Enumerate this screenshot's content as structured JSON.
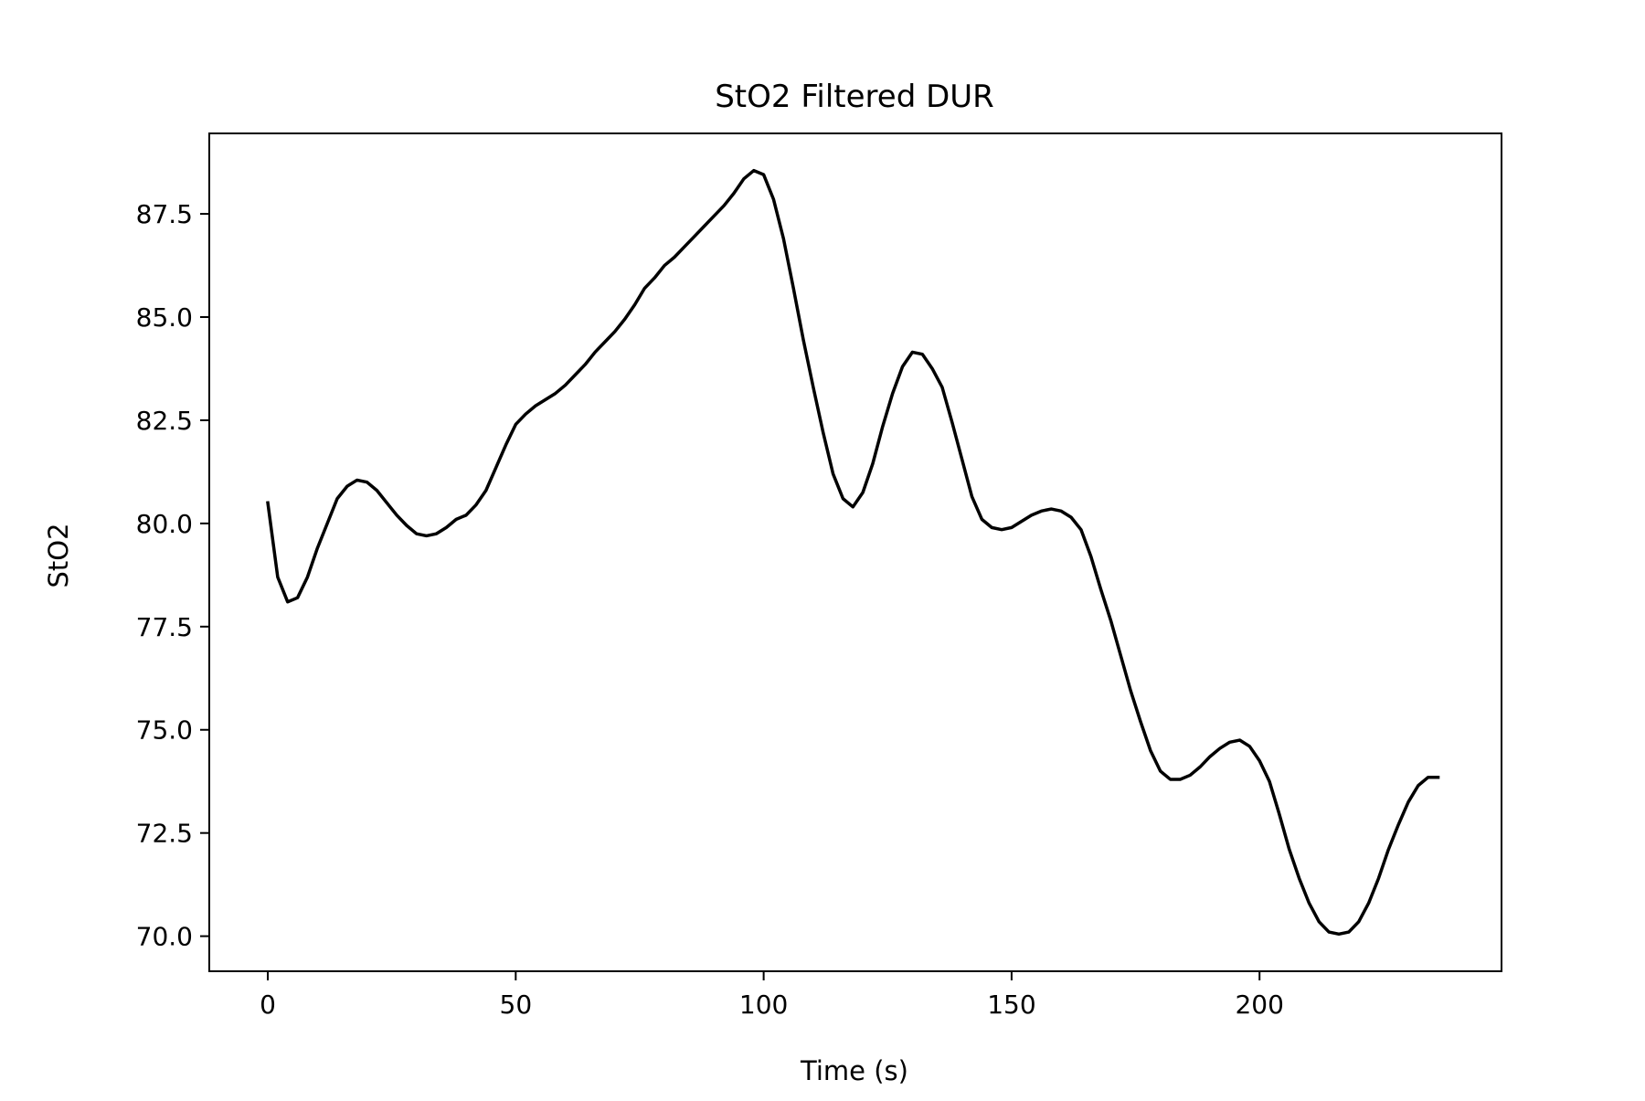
{
  "chart_data": {
    "type": "line",
    "title": "StO2 Filtered DUR",
    "xlabel": "Time (s)",
    "ylabel": "StO2",
    "xlim": [
      -11.8,
      248.8
    ],
    "ylim": [
      69.15,
      89.45
    ],
    "xticks": [
      0,
      50,
      100,
      150,
      200
    ],
    "xtick_labels": [
      "0",
      "50",
      "100",
      "150",
      "200"
    ],
    "yticks": [
      70.0,
      72.5,
      75.0,
      77.5,
      80.0,
      82.5,
      85.0,
      87.5
    ],
    "ytick_labels": [
      "70.0",
      "72.5",
      "75.0",
      "77.5",
      "80.0",
      "82.5",
      "85.0",
      "87.5"
    ],
    "grid": false,
    "series": [
      {
        "color": "#000000",
        "x": [
          0,
          2,
          4,
          6,
          8,
          10,
          12,
          14,
          16,
          18,
          20,
          22,
          24,
          26,
          28,
          30,
          32,
          34,
          36,
          38,
          40,
          42,
          44,
          46,
          48,
          50,
          52,
          54,
          56,
          58,
          60,
          62,
          64,
          66,
          68,
          70,
          72,
          74,
          76,
          78,
          80,
          82,
          84,
          86,
          88,
          90,
          92,
          94,
          96,
          98,
          100,
          102,
          104,
          106,
          108,
          110,
          112,
          114,
          116,
          118,
          120,
          122,
          124,
          126,
          128,
          130,
          132,
          134,
          136,
          138,
          140,
          142,
          144,
          146,
          148,
          150,
          152,
          154,
          156,
          158,
          160,
          162,
          164,
          166,
          168,
          170,
          172,
          174,
          176,
          178,
          180,
          182,
          184,
          186,
          188,
          190,
          192,
          194,
          196,
          198,
          200,
          202,
          204,
          206,
          208,
          210,
          212,
          214,
          216,
          218,
          220,
          222,
          224,
          226,
          228,
          230,
          232,
          234,
          236
        ],
        "y": [
          80.5,
          78.7,
          78.1,
          78.2,
          78.7,
          79.4,
          80.0,
          80.6,
          80.9,
          81.05,
          81.0,
          80.8,
          80.5,
          80.2,
          79.95,
          79.75,
          79.7,
          79.75,
          79.9,
          80.1,
          80.2,
          80.45,
          80.8,
          81.35,
          81.9,
          82.4,
          82.65,
          82.85,
          83.0,
          83.15,
          83.35,
          83.6,
          83.85,
          84.15,
          84.4,
          84.65,
          84.95,
          85.3,
          85.7,
          85.95,
          86.25,
          86.45,
          86.7,
          86.95,
          87.2,
          87.45,
          87.7,
          88.0,
          88.35,
          88.55,
          88.45,
          87.85,
          86.9,
          85.7,
          84.45,
          83.3,
          82.2,
          81.2,
          80.6,
          80.4,
          80.75,
          81.45,
          82.35,
          83.15,
          83.8,
          84.15,
          84.1,
          83.75,
          83.3,
          82.45,
          81.55,
          80.65,
          80.1,
          79.9,
          79.85,
          79.9,
          80.05,
          80.2,
          80.3,
          80.35,
          80.3,
          80.15,
          79.85,
          79.2,
          78.4,
          77.65,
          76.8,
          75.95,
          75.2,
          74.5,
          74.0,
          73.8,
          73.8,
          73.9,
          74.1,
          74.35,
          74.55,
          74.7,
          74.75,
          74.6,
          74.25,
          73.75,
          72.95,
          72.1,
          71.4,
          70.8,
          70.35,
          70.1,
          70.05,
          70.1,
          70.35,
          70.8,
          71.4,
          72.1,
          72.7,
          73.25,
          73.65,
          73.85,
          73.85
        ]
      }
    ]
  }
}
